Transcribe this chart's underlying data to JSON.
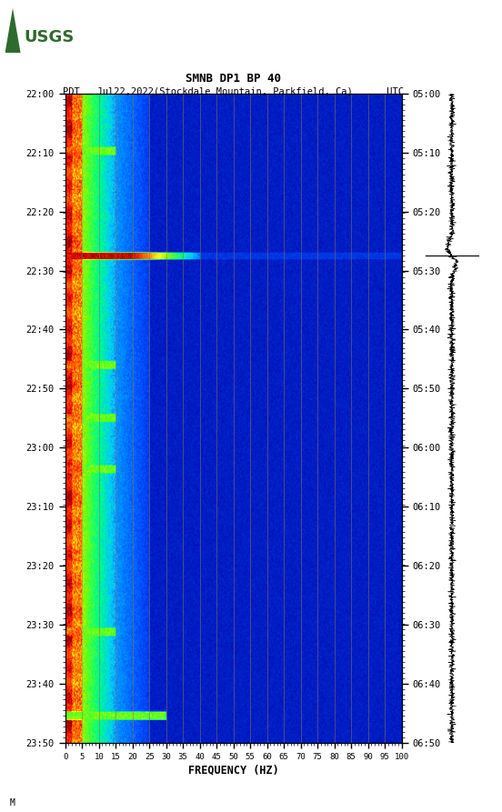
{
  "title_line1": "SMNB DP1 BP 40",
  "title_line2": "PDT   Jul22,2022(Stockdale Mountain, Parkfield, Ca)      UTC",
  "xlabel": "FREQUENCY (HZ)",
  "freq_ticks": [
    0,
    5,
    10,
    15,
    20,
    25,
    30,
    35,
    40,
    45,
    50,
    55,
    60,
    65,
    70,
    75,
    80,
    85,
    90,
    95,
    100
  ],
  "freq_min": 0,
  "freq_max": 100,
  "time_labels_pdt": [
    "22:00",
    "22:10",
    "22:20",
    "22:30",
    "22:40",
    "22:50",
    "23:00",
    "23:10",
    "23:20",
    "23:30",
    "23:40",
    "23:50"
  ],
  "time_labels_utc": [
    "05:00",
    "05:10",
    "05:20",
    "05:30",
    "05:40",
    "05:50",
    "06:00",
    "06:10",
    "06:20",
    "06:30",
    "06:40",
    "06:50"
  ],
  "background_color": "#ffffff",
  "spectrogram_bg": "#00008B",
  "grid_color": "#8B7355",
  "usgs_green": "#2E6B2E",
  "font_family": "monospace",
  "n_time": 480,
  "n_freq": 500
}
